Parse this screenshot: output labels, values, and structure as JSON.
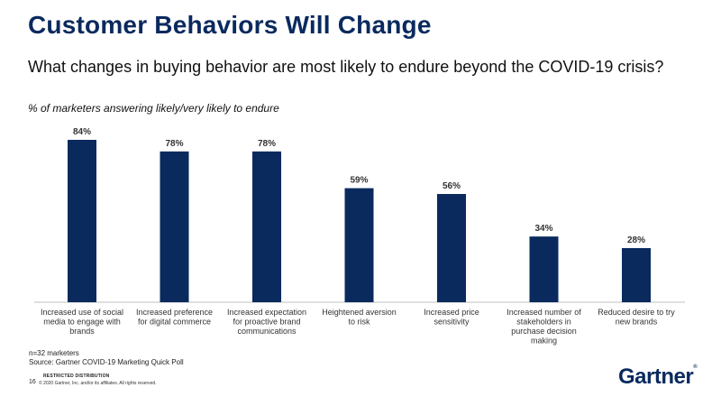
{
  "slide": {
    "title": "Customer Behaviors Will Change",
    "subtitle": "What changes in buying behavior are most likely to endure beyond the COVID-19 crisis?",
    "note": "% of marketers answering likely/very likely to endure"
  },
  "footer": {
    "sample": "n=32 marketers",
    "source": "Source: Gartner COVID-19 Marketing Quick Poll",
    "restricted": "RESTRICTED DISTRIBUTION",
    "page_number": "16",
    "copyright": "© 2020 Gartner, Inc. and/or its affiliates. All rights reserved.",
    "brand": "Gartner",
    "brand_mark": "®"
  },
  "colors": {
    "bar": "#0a2a5e",
    "title": "#0a2a5e"
  },
  "chart_data": {
    "type": "bar",
    "categories": [
      "Increased use of social media to engage with brands",
      "Increased preference for digital commerce",
      "Increased expectation for proactive brand communications",
      "Heightened aversion to risk",
      "Increased price sensitivity",
      "Increased number of stakeholders in purchase decision making",
      "Reduced desire to try new brands"
    ],
    "values": [
      84,
      78,
      78,
      59,
      56,
      34,
      28
    ],
    "value_labels": [
      "84%",
      "78%",
      "78%",
      "59%",
      "56%",
      "34%",
      "28%"
    ],
    "category_lines": [
      [
        "Increased use of social",
        "media to engage with",
        "brands"
      ],
      [
        "Increased preference",
        "for digital commerce"
      ],
      [
        "Increased expectation",
        "for proactive brand",
        "communications"
      ],
      [
        "Heightened aversion",
        "to risk"
      ],
      [
        "Increased price",
        "sensitivity"
      ],
      [
        "Increased number of",
        "stakeholders in",
        "purchase decision",
        "making"
      ],
      [
        "Reduced desire to try",
        "new brands"
      ]
    ],
    "ylim": [
      0,
      84
    ],
    "grid": false,
    "legend": "none"
  }
}
